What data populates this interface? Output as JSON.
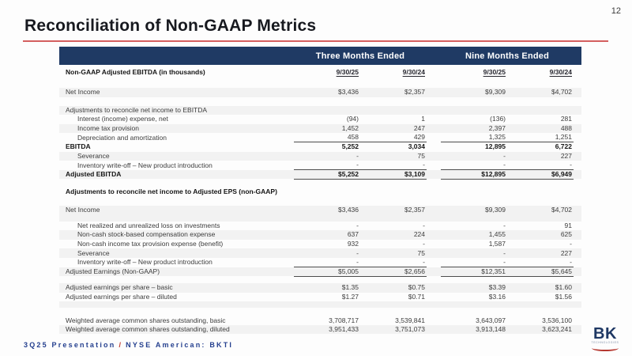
{
  "page": {
    "number": "12"
  },
  "title": {
    "text": "Reconciliation of Non-GAAP Metrics"
  },
  "colors": {
    "header_navy": "#1f3a64",
    "accent_red": "#d45f5f",
    "row_shade": "#f2f2f2",
    "footer_blue": "#25408f",
    "logo_red": "#b5372f"
  },
  "footer": {
    "left": "3Q25 Presentation",
    "separator": "/",
    "right": "NYSE American: BKTI",
    "logo_text": "BK",
    "logo_sub": "TECHNOLOGIES"
  },
  "table": {
    "group_headers": [
      {
        "label": "Three Months Ended"
      },
      {
        "label": "Nine Months Ended"
      }
    ],
    "rows": [
      {
        "type": "dates",
        "label": "Non-GAAP Adjusted EBITDA (in thousands)",
        "bold": true,
        "height": 15,
        "values": [
          "9/30/25",
          "9/30/24",
          "9/30/25",
          "9/30/24"
        ]
      },
      {
        "type": "blank",
        "height": 12
      },
      {
        "label": "Net Income",
        "shaded": true,
        "values": [
          "$3,436",
          "$2,357",
          "$9,309",
          "$4,702"
        ]
      },
      {
        "type": "blank",
        "height": 11
      },
      {
        "label": "Adjustments to reconcile net income to EBITDA",
        "shaded": true,
        "values": [
          "",
          "",
          "",
          ""
        ]
      },
      {
        "label": "Interest (income) expense, net",
        "indent": 1,
        "values": [
          "(94)",
          "1",
          "(136)",
          "281"
        ]
      },
      {
        "label": "Income tax provision",
        "indent": 1,
        "shaded": true,
        "values": [
          "1,452",
          "247",
          "2,397",
          "488"
        ]
      },
      {
        "label": "Depreciation and amortization",
        "indent": 1,
        "underline": true,
        "values": [
          "458",
          "429",
          "1,325",
          "1,251"
        ]
      },
      {
        "label": "EBITDA",
        "bold": true,
        "values": [
          "5,252",
          "3,034",
          "12,895",
          "6,722"
        ]
      },
      {
        "label": "Severance",
        "indent": 1,
        "shaded": true,
        "values": [
          "-",
          "75",
          "-",
          "227"
        ]
      },
      {
        "label": "Inventory write-off – New product introduction",
        "indent": 1,
        "underline": true,
        "values": [
          "-",
          "-",
          "-",
          "-"
        ]
      },
      {
        "label": "Adjusted EBITDA",
        "bold": true,
        "shaded": true,
        "underline": true,
        "values": [
          "$5,252",
          "$3,109",
          "$12,895",
          "$6,949"
        ]
      },
      {
        "type": "blank",
        "height": 10
      },
      {
        "label": "Adjustments to reconcile net income to Adjusted EPS (non-GAAP)",
        "bold": true,
        "values": [
          "",
          "",
          "",
          ""
        ]
      },
      {
        "type": "blank",
        "height": 12
      },
      {
        "label": "Net Income",
        "shaded": true,
        "values": [
          "$3,436",
          "$2,357",
          "$9,309",
          "$4,702"
        ]
      },
      {
        "type": "blank",
        "height": 8,
        "shaded": true
      },
      {
        "label": "Net realized and unrealized loss on investments",
        "indent": 1,
        "values": [
          "-",
          "-",
          "-",
          "91"
        ]
      },
      {
        "label": "Non-cash stock-based compensation expense",
        "indent": 1,
        "shaded": true,
        "values": [
          "637",
          "224",
          "1,455",
          "625"
        ]
      },
      {
        "label": "Non-cash income tax provision expense (benefit)",
        "indent": 1,
        "values": [
          "932",
          "-",
          "1,587",
          "-"
        ]
      },
      {
        "label": "Severance",
        "indent": 1,
        "shaded": true,
        "values": [
          "-",
          "75",
          "-",
          "227"
        ]
      },
      {
        "label": "Inventory write-off – New product introduction",
        "indent": 1,
        "underline": true,
        "values": [
          "-",
          "-",
          "-",
          "-"
        ]
      },
      {
        "label": "Adjusted Earnings (Non-GAAP)",
        "shaded": true,
        "underline": true,
        "values": [
          "$5,005",
          "$2,656",
          "$12,351",
          "$5,645"
        ]
      },
      {
        "type": "blank",
        "height": 9
      },
      {
        "label": "Adjusted earnings per share – basic",
        "shaded": true,
        "values": [
          "$1.35",
          "$0.75",
          "$3.39",
          "$1.60"
        ]
      },
      {
        "label": "Adjusted earnings per share – diluted",
        "values": [
          "$1.27",
          "$0.71",
          "$3.16",
          "$1.56"
        ]
      },
      {
        "type": "blank",
        "height": 8,
        "shaded": true
      },
      {
        "type": "blank",
        "height": 10
      },
      {
        "label": "Weighted average common shares outstanding, basic",
        "values": [
          "3,708,717",
          "3,539,841",
          "3,643,097",
          "3,536,100"
        ]
      },
      {
        "label": "Weighted average common shares outstanding, diluted",
        "shaded": true,
        "values": [
          "3,951,433",
          "3,751,073",
          "3,913,148",
          "3,623,241"
        ]
      }
    ]
  }
}
